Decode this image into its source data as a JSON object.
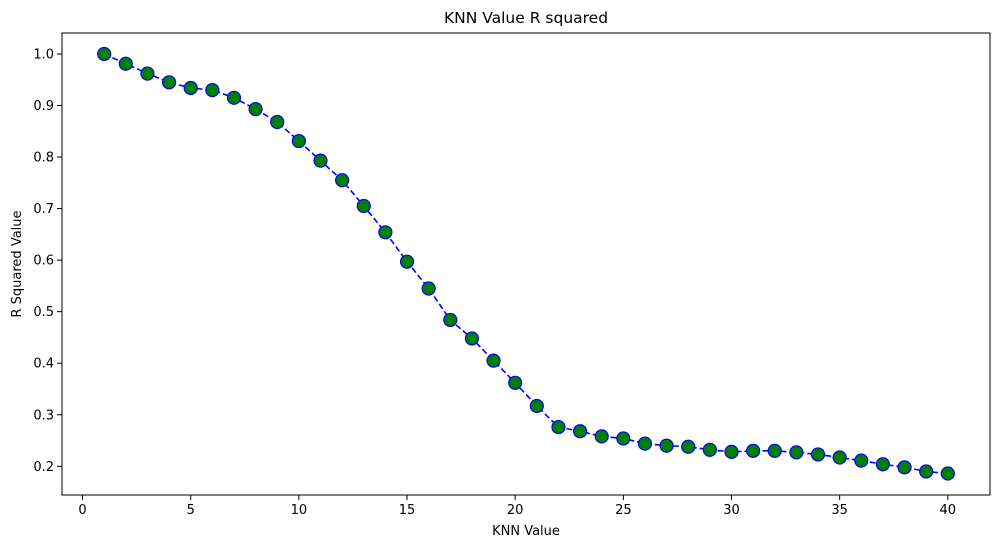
{
  "chart_data": {
    "type": "line",
    "title": "KNN Value R squared",
    "xlabel": "KNN Value",
    "ylabel": "R Squared Value",
    "xlim": [
      -0.95,
      41.95
    ],
    "ylim": [
      0.1443,
      1.0407
    ],
    "xticks": [
      0,
      5,
      10,
      15,
      20,
      25,
      30,
      35,
      40
    ],
    "yticks": [
      0.2,
      0.3,
      0.4,
      0.5,
      0.6,
      0.7,
      0.8,
      0.9,
      1.0
    ],
    "xtick_labels": [
      "0",
      "5",
      "10",
      "15",
      "20",
      "25",
      "30",
      "35",
      "40"
    ],
    "ytick_labels": [
      "0.2",
      "0.3",
      "0.4",
      "0.5",
      "0.6",
      "0.7",
      "0.8",
      "0.9",
      "1.0"
    ],
    "grid": false,
    "legend": "none",
    "line_style": "dashed",
    "line_color": "#0000ff",
    "marker_face_color": "#008000",
    "marker_edge_color": "#0000ff",
    "series": [
      {
        "x": [
          1,
          2,
          3,
          4,
          5,
          6,
          7,
          8,
          9,
          10,
          11,
          12,
          13,
          14,
          15,
          16,
          17,
          18,
          19,
          20,
          21,
          22,
          23,
          24,
          25,
          26,
          27,
          28,
          29,
          30,
          31,
          32,
          33,
          34,
          35,
          36,
          37,
          38,
          39,
          40
        ],
        "values": [
          1.0,
          0.981,
          0.962,
          0.945,
          0.934,
          0.93,
          0.915,
          0.893,
          0.868,
          0.831,
          0.793,
          0.755,
          0.705,
          0.654,
          0.597,
          0.545,
          0.484,
          0.448,
          0.405,
          0.362,
          0.317,
          0.276,
          0.268,
          0.258,
          0.254,
          0.244,
          0.24,
          0.238,
          0.232,
          0.228,
          0.23,
          0.23,
          0.227,
          0.223,
          0.217,
          0.211,
          0.204,
          0.198,
          0.19,
          0.186
        ]
      }
    ]
  }
}
